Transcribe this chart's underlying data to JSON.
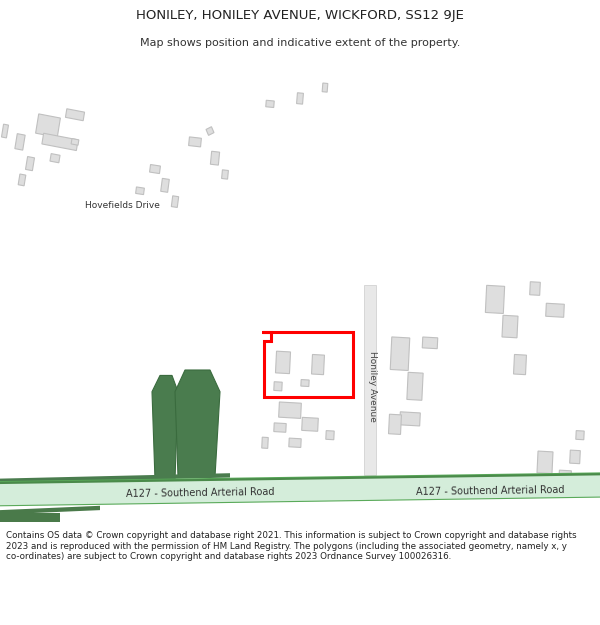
{
  "title_line1": "HONILEY, HONILEY AVENUE, WICKFORD, SS12 9JE",
  "title_line2": "Map shows position and indicative extent of the property.",
  "footer_text": "Contains OS data © Crown copyright and database right 2021. This information is subject to Crown copyright and database rights 2023 and is reproduced with the permission of HM Land Registry. The polygons (including the associated geometry, namely x, y co-ordinates) are subject to Crown copyright and database rights 2023 Ordnance Survey 100026316.",
  "bg_color": "#ffffff",
  "map_bg": "#ffffff",
  "road_light": "#d4edda",
  "road_green": "#5a9e5a",
  "road_dark": "#3d7a3d",
  "building_color": "#dedede",
  "building_edge": "#c0c0c0",
  "green_fill": "#4a7c4e",
  "plot_color": "#ff0000",
  "road_label_color": "#333333"
}
